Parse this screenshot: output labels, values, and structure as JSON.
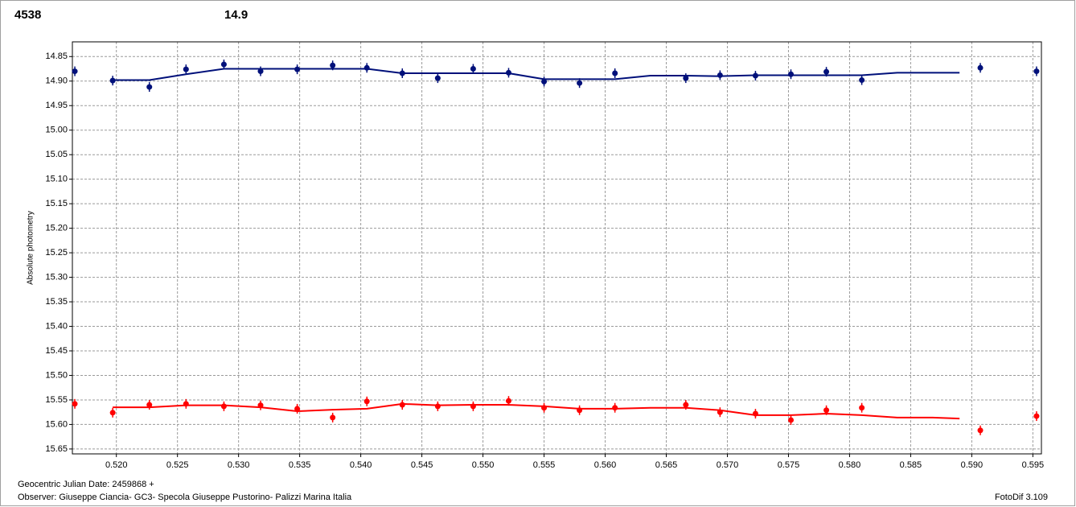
{
  "chart_data": {
    "type": "scatter",
    "annotations": [
      {
        "text": "4538",
        "color": "#ff0000"
      },
      {
        "text": "14.9",
        "color": "#00107a"
      },
      {
        "text": "Geocentric Julian Date: 2459868 +",
        "color": "#000000"
      },
      {
        "text": "Observer: Giuseppe Ciancia- GC3- Specola Giuseppe Pustorino- Palizzi Marina Italia",
        "color": "#000000"
      },
      {
        "text": "FotoDif 3.109",
        "color": "#000000"
      }
    ],
    "y_label": "Absolute photometry",
    "xlim": [
      0.5164,
      0.5957
    ],
    "ylim": [
      15.66,
      14.82
    ],
    "xticks": [
      {
        "value": 0.52,
        "label": "0.520"
      },
      0.525,
      {
        "value": 0.53,
        "label": "0.530"
      },
      0.535,
      {
        "value": 0.54,
        "label": "0.540"
      },
      0.545,
      {
        "value": 0.55,
        "label": "0.550"
      },
      0.555,
      {
        "value": 0.56,
        "label": "0.560"
      },
      0.565,
      {
        "value": 0.57,
        "label": "0.570"
      },
      0.575,
      {
        "value": 0.58,
        "label": "0.580"
      },
      0.585,
      {
        "value": 0.59,
        "label": "0.590"
      },
      0.595
    ],
    "yticks": [
      14.85,
      {
        "value": 14.9,
        "label": "14.90"
      },
      14.95,
      {
        "value": 15.0,
        "label": "15.00"
      },
      15.05,
      {
        "value": 15.1,
        "label": "15.10"
      },
      15.15,
      {
        "value": 15.2,
        "label": "15.20"
      },
      15.25,
      {
        "value": 15.3,
        "label": "15.30"
      },
      15.35,
      {
        "value": 15.4,
        "label": "15.40"
      },
      15.45,
      {
        "value": 15.5,
        "label": "15.50"
      },
      15.55,
      {
        "value": 15.6,
        "label": "15.60"
      },
      15.65
    ],
    "grid": true,
    "series": [
      {
        "style": "points",
        "color": "#00107a",
        "x": [
          0.5166,
          0.5197,
          0.5227,
          0.5257,
          0.5288,
          0.5318,
          0.5348,
          0.5377,
          0.5405,
          0.5434,
          0.5463,
          0.5492,
          0.5521,
          0.555,
          0.5579,
          0.5608,
          0.5666,
          0.5694,
          0.5723,
          0.5752,
          0.5781,
          0.581,
          0.5907,
          0.5953
        ],
        "values": [
          14.88,
          14.899,
          14.912,
          14.876,
          14.866,
          14.88,
          14.876,
          14.868,
          14.873,
          14.884,
          14.894,
          14.875,
          14.883,
          14.901,
          14.904,
          14.884,
          14.894,
          14.888,
          14.889,
          14.886,
          14.881,
          14.898,
          14.873,
          14.88
        ]
      },
      {
        "style": "line",
        "color": "#00107a",
        "x": [
          0.5197,
          0.5227,
          0.5257,
          0.5288,
          0.5318,
          0.5348,
          0.5377,
          0.5405,
          0.5434,
          0.5463,
          0.5492,
          0.5521,
          0.555,
          0.5579,
          0.5608,
          0.5637,
          0.5666,
          0.5694,
          0.5723,
          0.5752,
          0.5781,
          0.581,
          0.5839,
          0.5868,
          0.589
        ],
        "values": [
          14.898,
          14.898,
          14.886,
          14.875,
          14.875,
          14.875,
          14.875,
          14.875,
          14.884,
          14.884,
          14.884,
          14.884,
          14.896,
          14.896,
          14.896,
          14.889,
          14.889,
          14.89,
          14.888,
          14.888,
          14.888,
          14.888,
          14.883,
          14.883,
          14.883
        ]
      },
      {
        "style": "points",
        "color": "#ff0000",
        "x": [
          0.5166,
          0.5197,
          0.5227,
          0.5257,
          0.5288,
          0.5318,
          0.5348,
          0.5377,
          0.5405,
          0.5434,
          0.5463,
          0.5492,
          0.5521,
          0.555,
          0.5579,
          0.5608,
          0.5666,
          0.5694,
          0.5723,
          0.5752,
          0.5781,
          0.581,
          0.5907,
          0.5953
        ],
        "values": [
          15.558,
          15.576,
          15.56,
          15.558,
          15.563,
          15.561,
          15.568,
          15.586,
          15.553,
          15.56,
          15.563,
          15.563,
          15.552,
          15.566,
          15.571,
          15.566,
          15.56,
          15.575,
          15.578,
          15.591,
          15.571,
          15.566,
          15.612,
          15.583
        ]
      },
      {
        "style": "line",
        "color": "#ff0000",
        "x": [
          0.5197,
          0.5227,
          0.5257,
          0.5288,
          0.5318,
          0.5348,
          0.5377,
          0.5405,
          0.5434,
          0.5463,
          0.5492,
          0.5521,
          0.555,
          0.5579,
          0.5608,
          0.5637,
          0.5666,
          0.5694,
          0.5723,
          0.5752,
          0.5781,
          0.581,
          0.5839,
          0.5868,
          0.589
        ],
        "values": [
          15.565,
          15.565,
          15.561,
          15.561,
          15.565,
          15.573,
          15.57,
          15.568,
          15.558,
          15.561,
          15.56,
          15.56,
          15.563,
          15.568,
          15.568,
          15.566,
          15.566,
          15.571,
          15.581,
          15.581,
          15.578,
          15.581,
          15.586,
          15.586,
          15.588
        ]
      }
    ]
  }
}
